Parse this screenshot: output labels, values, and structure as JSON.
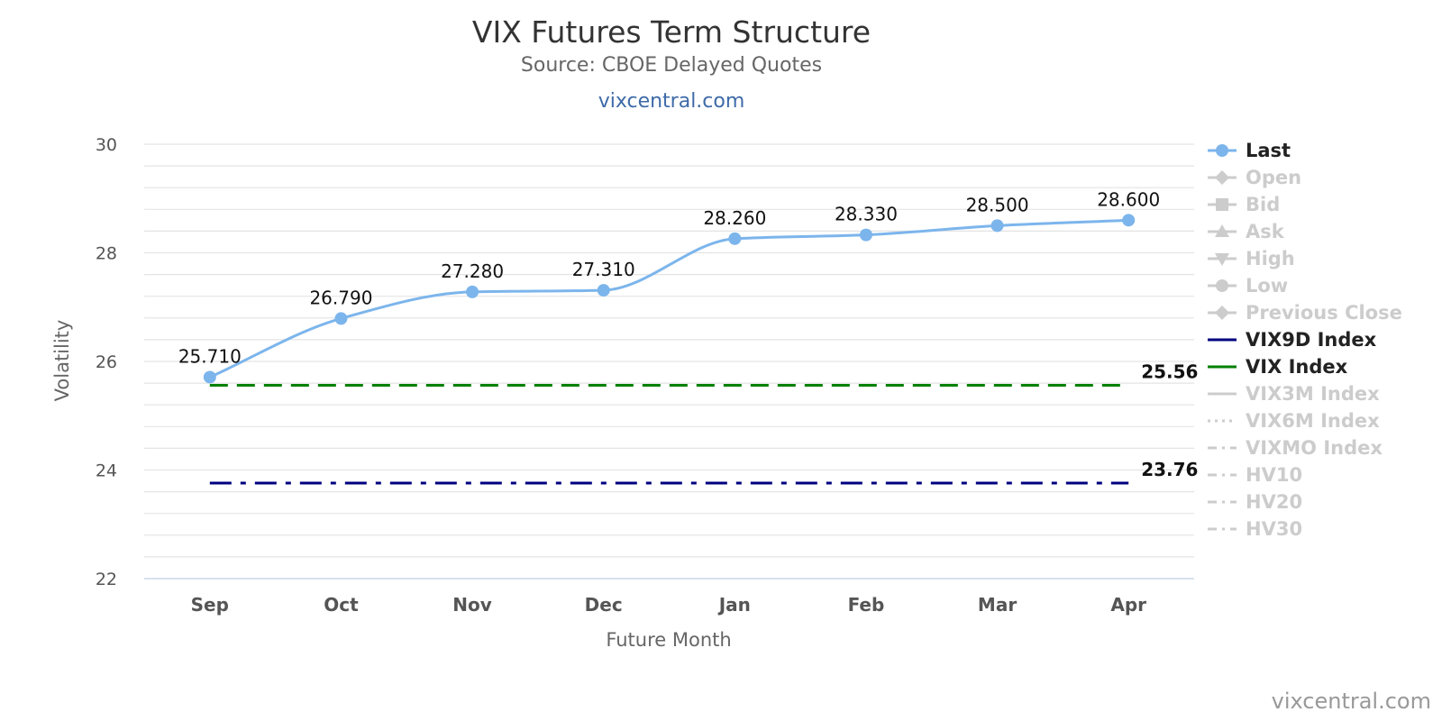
{
  "chart_data": {
    "type": "line",
    "title": "VIX Futures Term Structure",
    "subtitle": "Source: CBOE Delayed Quotes",
    "link": "vixcentral.com",
    "credit": "vixcentral.com",
    "xlabel": "Future Month",
    "ylabel": "Volatility",
    "ylim": [
      22,
      30
    ],
    "yticks": [
      "22",
      "24",
      "26",
      "28",
      "30"
    ],
    "minor_grid_step": 0.4,
    "grid": true,
    "legend_position": "right",
    "categories": [
      "Sep",
      "Oct",
      "Nov",
      "Dec",
      "Jan",
      "Feb",
      "Mar",
      "Apr"
    ],
    "series": [
      {
        "name": "Last",
        "color": "#7cb5ec",
        "style": "solid-with-markers",
        "values": [
          25.71,
          26.79,
          27.28,
          27.31,
          28.26,
          28.33,
          28.5,
          28.6
        ],
        "labels": [
          "25.710",
          "26.790",
          "27.280",
          "27.310",
          "28.260",
          "28.330",
          "28.500",
          "28.600"
        ]
      },
      {
        "name": "VIX Index",
        "color": "#008000",
        "style": "dash",
        "value": 25.56,
        "label": "25.56"
      },
      {
        "name": "VIX9D Index",
        "color": "#000080",
        "style": "dash-dot",
        "value": 23.76,
        "label": "23.76"
      }
    ],
    "legend": [
      {
        "name": "Last",
        "symbol": "circle",
        "line": "solid",
        "active": true,
        "color": "#7cb5ec"
      },
      {
        "name": "Open",
        "symbol": "diamond",
        "line": "solid",
        "active": false,
        "color": "#cccccc"
      },
      {
        "name": "Bid",
        "symbol": "square",
        "line": "solid",
        "active": false,
        "color": "#cccccc"
      },
      {
        "name": "Ask",
        "symbol": "triangle",
        "line": "solid",
        "active": false,
        "color": "#cccccc"
      },
      {
        "name": "High",
        "symbol": "triangle-down",
        "line": "solid",
        "active": false,
        "color": "#cccccc"
      },
      {
        "name": "Low",
        "symbol": "circle",
        "line": "solid",
        "active": false,
        "color": "#cccccc"
      },
      {
        "name": "Previous Close",
        "symbol": "diamond",
        "line": "solid",
        "active": false,
        "color": "#cccccc"
      },
      {
        "name": "VIX9D Index",
        "symbol": "none",
        "line": "solid",
        "active": true,
        "color": "#000080"
      },
      {
        "name": "VIX Index",
        "symbol": "none",
        "line": "solid",
        "active": true,
        "color": "#008000"
      },
      {
        "name": "VIX3M Index",
        "symbol": "none",
        "line": "solid",
        "active": false,
        "color": "#cccccc"
      },
      {
        "name": "VIX6M Index",
        "symbol": "none",
        "line": "dot",
        "active": false,
        "color": "#cccccc"
      },
      {
        "name": "VIXMO Index",
        "symbol": "none",
        "line": "dash-dot",
        "active": false,
        "color": "#cccccc"
      },
      {
        "name": "HV10",
        "symbol": "none",
        "line": "dash-dot",
        "active": false,
        "color": "#cccccc"
      },
      {
        "name": "HV20",
        "symbol": "none",
        "line": "dash-dot",
        "active": false,
        "color": "#cccccc"
      },
      {
        "name": "HV30",
        "symbol": "none",
        "line": "dash-dot",
        "active": false,
        "color": "#cccccc"
      }
    ]
  }
}
